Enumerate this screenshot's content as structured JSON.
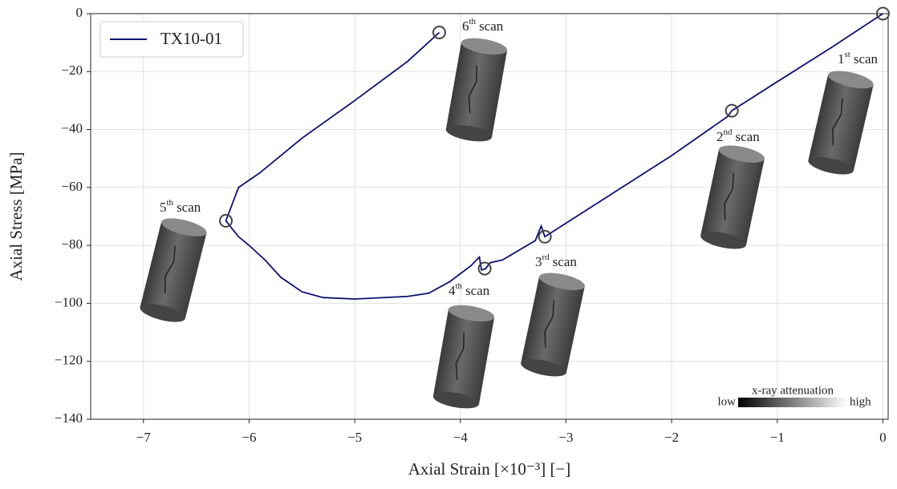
{
  "chart_data": {
    "type": "line",
    "xlabel": "Axial Strain [×10⁻³] [−]",
    "ylabel": "Axial Stress [MPa]",
    "series": [
      {
        "name": "TX10-01",
        "color": "#0b1170",
        "x": [
          0,
          -0.5,
          -1.0,
          -1.43,
          -1.45,
          -1.47,
          -2.0,
          -2.6,
          -3.2,
          -3.235,
          -3.29,
          -3.6,
          -3.72,
          -3.76,
          -3.8,
          -3.82,
          -3.9,
          -4.1,
          -4.3,
          -4.5,
          -5.0,
          -5.3,
          -5.5,
          -5.7,
          -5.85,
          -6.0,
          -6.1,
          -6.22,
          -6.1,
          -5.9,
          -5.5,
          -5.0,
          -4.5,
          -4.2
        ],
        "values": [
          0,
          -12,
          -23.5,
          -33.5,
          -34.5,
          -35.5,
          -49,
          -63,
          -77,
          -73.3,
          -78.3,
          -85,
          -86,
          -88,
          -88.5,
          -84,
          -87,
          -92.5,
          -96.5,
          -97.6,
          -98.5,
          -98,
          -96,
          -91,
          -85,
          -80,
          -77,
          -71.5,
          -60,
          -55,
          -43,
          -30,
          -16.5,
          -6.5
        ]
      }
    ],
    "scan_points": {
      "x": [
        0,
        -1.43,
        -3.2,
        -3.77,
        -6.22,
        -4.2
      ],
      "y": [
        0,
        -33.5,
        -77,
        -88,
        -71.5,
        -6.5
      ]
    },
    "annotations": [
      {
        "number": "1",
        "suffix": "st",
        "word": "scan"
      },
      {
        "number": "2",
        "suffix": "nd",
        "word": "scan"
      },
      {
        "number": "3",
        "suffix": "rd",
        "word": "scan"
      },
      {
        "number": "4",
        "suffix": "th",
        "word": "scan"
      },
      {
        "number": "5",
        "suffix": "th",
        "word": "scan"
      },
      {
        "number": "6",
        "suffix": "th",
        "word": "scan"
      }
    ],
    "colorbar": {
      "title": "x-ray attenuation",
      "low": "low",
      "high": "high"
    },
    "xlim": [
      -7.5,
      0.05
    ],
    "ylim": [
      -140,
      0
    ],
    "xticks": [
      {
        "value": -7,
        "label": "−7"
      },
      {
        "value": -6,
        "label": "−6"
      },
      {
        "value": -5,
        "label": "−5"
      },
      {
        "value": -4,
        "label": "−4"
      },
      {
        "value": -3,
        "label": "−3"
      },
      {
        "value": -2,
        "label": "−2"
      },
      {
        "value": -1,
        "label": "−1"
      },
      0
    ],
    "yticks": [
      {
        "value": -140,
        "label": "−140"
      },
      {
        "value": -120,
        "label": "−120"
      },
      {
        "value": -100,
        "label": "−100"
      },
      {
        "value": -80,
        "label": "−80"
      },
      {
        "value": -60,
        "label": "−60"
      },
      {
        "value": -40,
        "label": "−40"
      },
      {
        "value": -20,
        "label": "−20"
      },
      0
    ],
    "grid": true,
    "legend": "upper left"
  }
}
